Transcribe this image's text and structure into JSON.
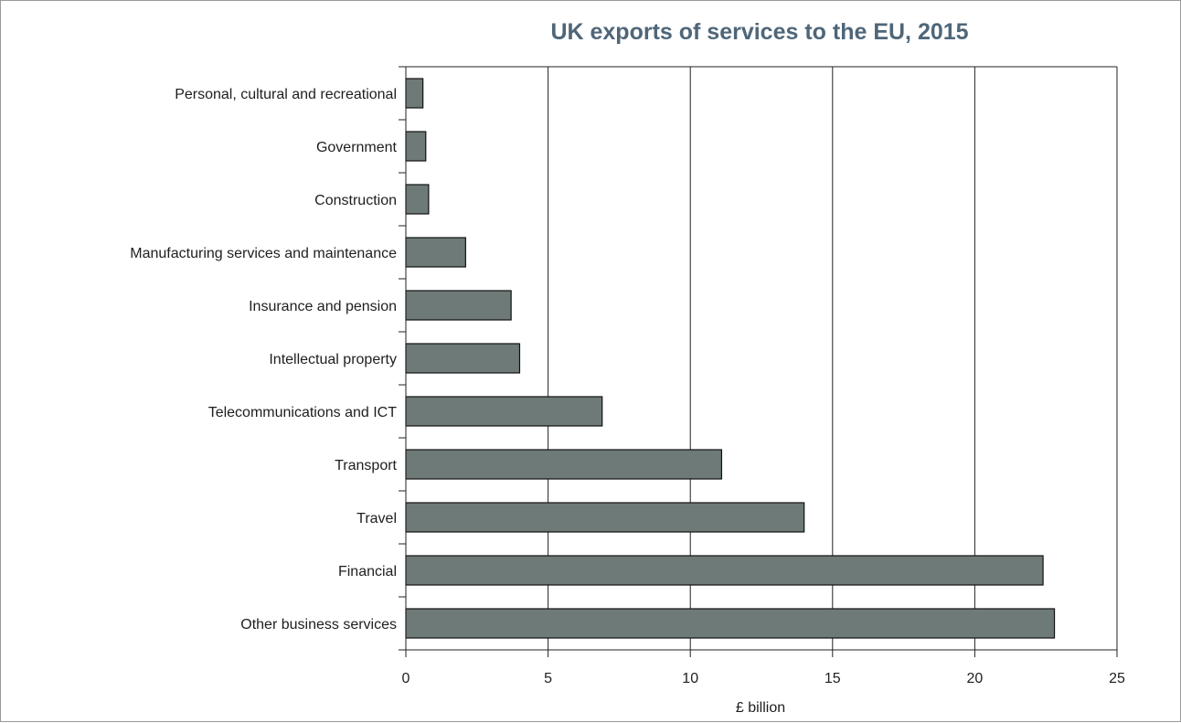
{
  "chart_data": {
    "type": "bar",
    "orientation": "horizontal",
    "title": "UK exports of services to the EU, 2015",
    "xlabel": "£ billion",
    "ylabel": "",
    "xlim": [
      0,
      25
    ],
    "xticks": [
      "0",
      "5",
      "10",
      "15",
      "20",
      "25"
    ],
    "grid": "vertical",
    "categories": [
      "Personal, cultural and recreational",
      "Government",
      "Construction",
      "Manufacturing services and maintenance",
      "Insurance and pension",
      "Intellectual property",
      "Telecommunications and ICT",
      "Transport",
      "Travel",
      "Financial",
      "Other business services"
    ],
    "values": [
      0.6,
      0.7,
      0.8,
      2.1,
      3.7,
      4.0,
      6.9,
      11.1,
      14.0,
      22.4,
      22.8
    ],
    "bar_color": "#6e7a78",
    "bar_edge_color": "#111111",
    "title_color": "#4f6678"
  }
}
